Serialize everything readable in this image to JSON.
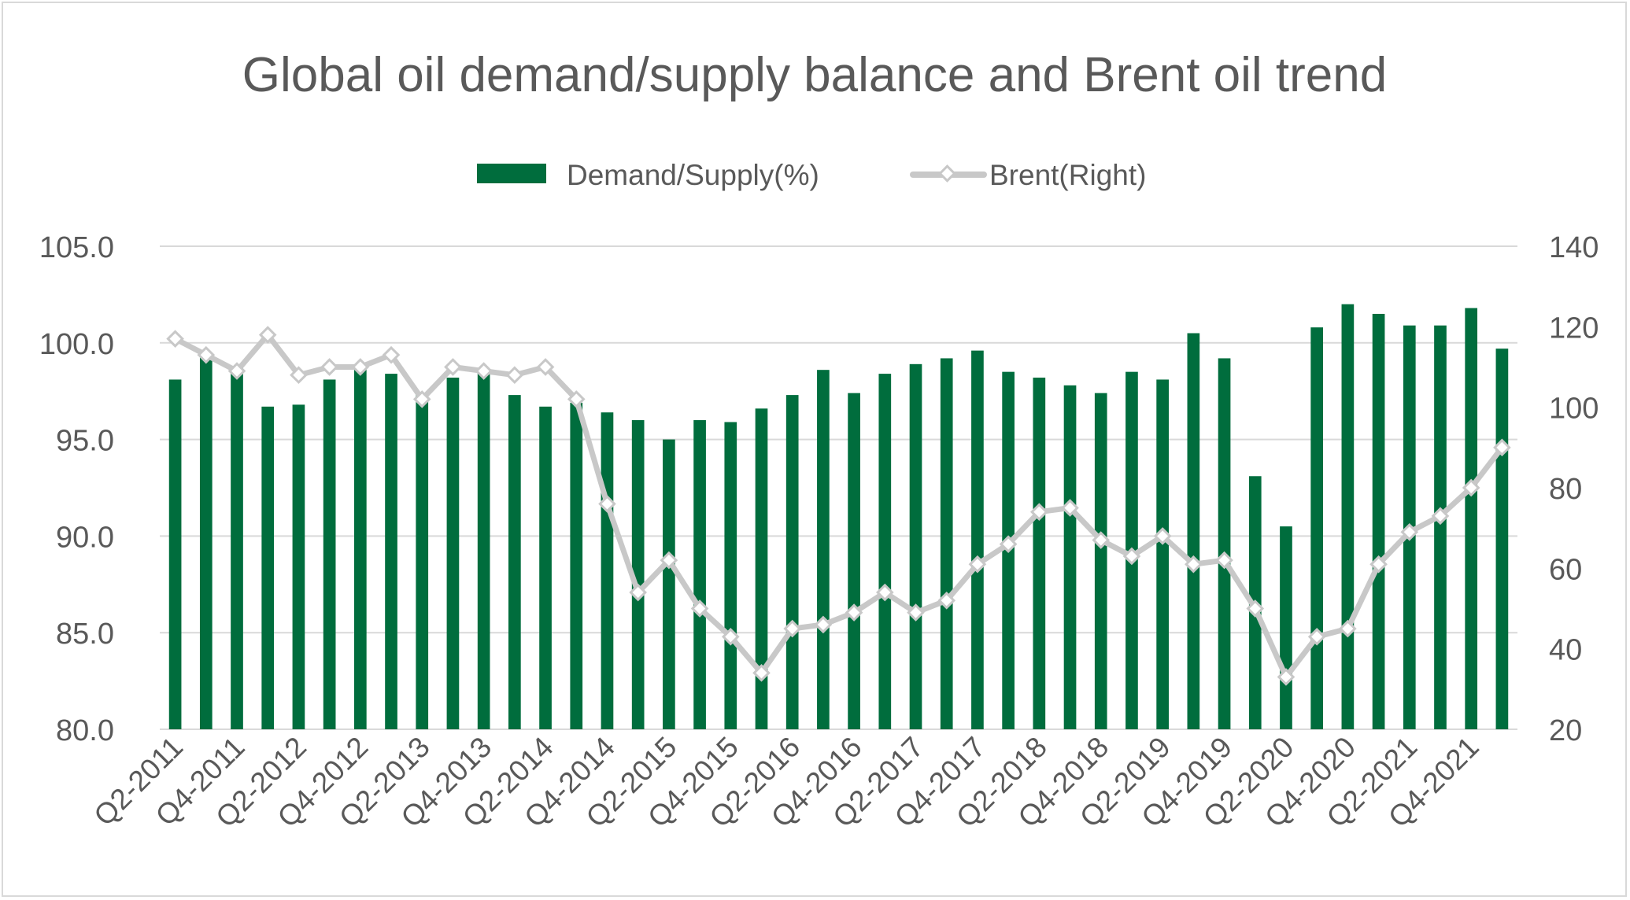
{
  "chart_data": {
    "type": "bar",
    "title": "Global oil demand/supply balance and Brent oil trend",
    "categories": [
      "Q2-2011",
      "Q3-2011",
      "Q4-2011",
      "Q1-2012",
      "Q2-2012",
      "Q3-2012",
      "Q4-2012",
      "Q1-2013",
      "Q2-2013",
      "Q3-2013",
      "Q4-2013",
      "Q1-2014",
      "Q2-2014",
      "Q3-2014",
      "Q4-2014",
      "Q1-2015",
      "Q2-2015",
      "Q3-2015",
      "Q4-2015",
      "Q1-2016",
      "Q2-2016",
      "Q3-2016",
      "Q4-2016",
      "Q1-2017",
      "Q2-2017",
      "Q3-2017",
      "Q4-2017",
      "Q1-2018",
      "Q2-2018",
      "Q3-2018",
      "Q4-2018",
      "Q1-2019",
      "Q2-2019",
      "Q3-2019",
      "Q4-2019",
      "Q1-2020",
      "Q2-2020",
      "Q3-2020",
      "Q4-2020",
      "Q1-2021",
      "Q2-2021",
      "Q3-2021",
      "Q4-2021",
      "Q1-2022"
    ],
    "tick_labels": [
      "Q2-2011",
      "Q4-2011",
      "Q2-2012",
      "Q4-2012",
      "Q2-2013",
      "Q4-2013",
      "Q2-2014",
      "Q4-2014",
      "Q2-2015",
      "Q4-2015",
      "Q2-2016",
      "Q4-2016",
      "Q2-2017",
      "Q4-2017",
      "Q2-2018",
      "Q4-2018",
      "Q2-2019",
      "Q4-2019",
      "Q2-2020",
      "Q4-2020",
      "Q2-2021",
      "Q4-2021"
    ],
    "series": [
      {
        "name": "Demand/Supply(%)",
        "kind": "bar",
        "axis": "left",
        "color": "#006d3d",
        "values": [
          98.1,
          99.4,
          98.8,
          96.7,
          96.8,
          98.1,
          98.8,
          98.4,
          97.3,
          98.2,
          98.5,
          97.3,
          96.7,
          96.9,
          96.4,
          96.0,
          95.0,
          96.0,
          95.9,
          96.6,
          97.3,
          98.6,
          97.4,
          98.4,
          98.9,
          99.2,
          99.6,
          98.5,
          98.2,
          97.8,
          97.4,
          98.5,
          98.1,
          100.5,
          99.2,
          93.1,
          90.5,
          100.8,
          102.0,
          101.5,
          100.9,
          100.9,
          101.8,
          99.7
        ]
      },
      {
        "name": "Brent(Right)",
        "kind": "line",
        "axis": "right",
        "color": "#c8c8c8",
        "values": [
          117,
          113,
          109,
          118,
          108,
          110,
          110,
          113,
          102,
          110,
          109,
          108,
          110,
          102,
          76,
          54,
          62,
          50,
          43,
          34,
          45,
          46,
          49,
          54,
          49,
          52,
          61,
          66,
          74,
          75,
          67,
          63,
          68,
          61,
          62,
          50,
          33,
          43,
          45,
          61,
          69,
          73,
          80,
          90
        ]
      }
    ],
    "left_axis": {
      "min": 80,
      "max": 105,
      "ticks": [
        "105.0",
        "100.0",
        "95.0",
        "90.0",
        "85.0",
        "80.0"
      ]
    },
    "right_axis": {
      "min": 20,
      "max": 140,
      "ticks": [
        "140",
        "120",
        "100",
        "80",
        "60",
        "40",
        "20"
      ]
    },
    "legend_position": "top-center",
    "grid": true
  }
}
